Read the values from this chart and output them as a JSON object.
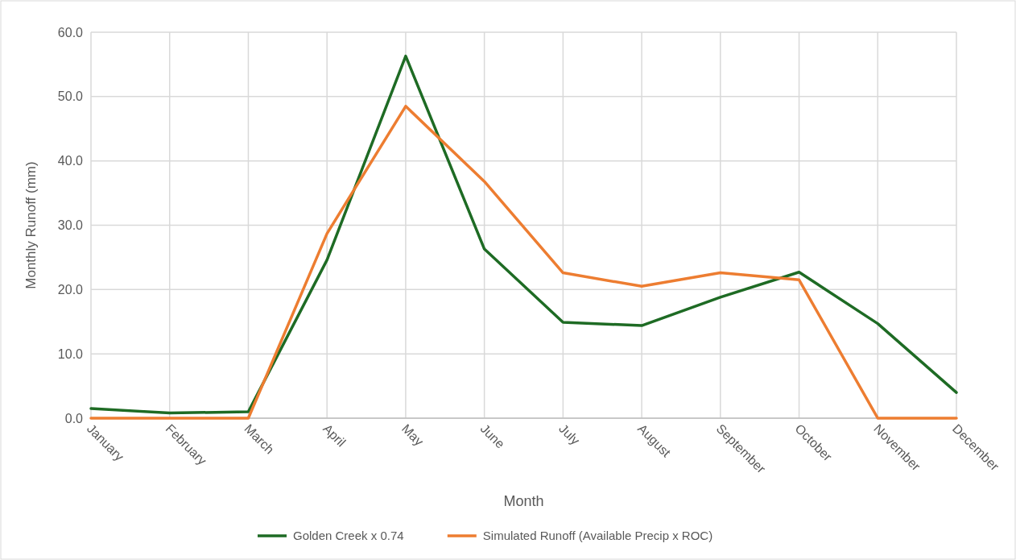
{
  "chart_data": {
    "type": "line",
    "xlabel": "Month",
    "ylabel": "Monthly Runoff (mm)",
    "categories": [
      "January",
      "February",
      "March",
      "April",
      "May",
      "June",
      "July",
      "August",
      "September",
      "October",
      "November",
      "December"
    ],
    "series": [
      {
        "name": "Golden Creek x 0.74",
        "color": "#1e6b24",
        "values": [
          1.5,
          0.8,
          1.0,
          24.6,
          56.3,
          26.3,
          14.9,
          14.4,
          18.8,
          22.7,
          14.7,
          4.0
        ]
      },
      {
        "name": "Simulated Runoff (Available Precip x ROC)",
        "color": "#ed7d31",
        "values": [
          0,
          0,
          0,
          28.7,
          48.5,
          36.8,
          22.6,
          20.5,
          22.6,
          21.5,
          0,
          0
        ]
      }
    ],
    "ylim": [
      0,
      60
    ],
    "yticks": [
      {
        "value": 0,
        "label": "0.0"
      },
      {
        "value": 10,
        "label": "10.0"
      },
      {
        "value": 20,
        "label": "20.0"
      },
      {
        "value": 30,
        "label": "30.0"
      },
      {
        "value": 40,
        "label": "40.0"
      },
      {
        "value": 50,
        "label": "50.0"
      },
      {
        "value": 60,
        "label": "60.0"
      }
    ],
    "grid": true,
    "legend": "bottom",
    "marker": "none",
    "line_style": "solid"
  }
}
